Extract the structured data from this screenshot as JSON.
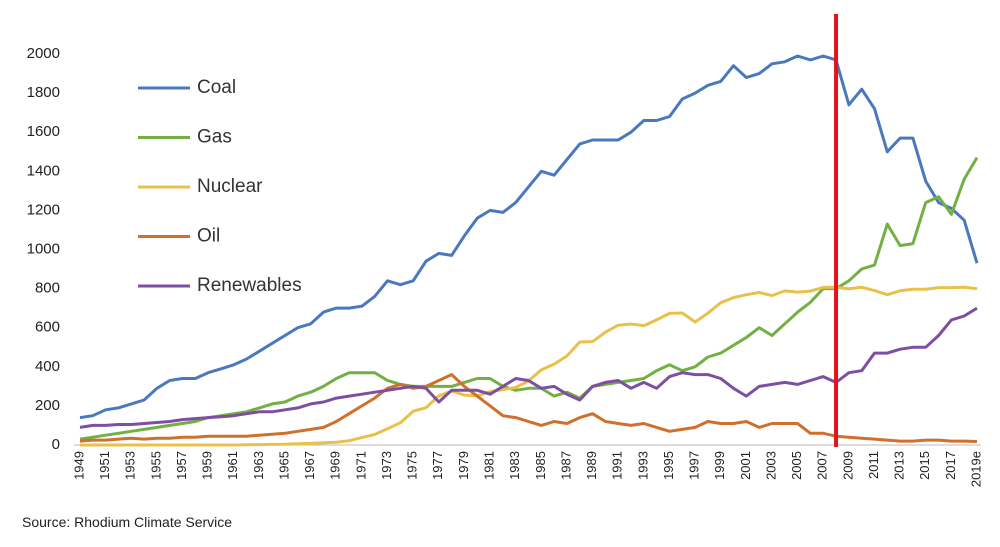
{
  "chart_data": {
    "type": "line",
    "categories": [
      "1949",
      null,
      "1951",
      null,
      "1953",
      null,
      "1955",
      null,
      "1957",
      null,
      "1959",
      null,
      "1961",
      null,
      "1963",
      null,
      "1965",
      null,
      "1967",
      null,
      "1969",
      null,
      "1971",
      null,
      "1973",
      null,
      "1975",
      null,
      "1977",
      null,
      "1979",
      null,
      "1981",
      null,
      "1983",
      null,
      "1985",
      null,
      "1987",
      null,
      "1989",
      null,
      "1991",
      null,
      "1993",
      null,
      "1995",
      null,
      "1997",
      null,
      "1999",
      null,
      "2001",
      null,
      "2003",
      null,
      "2005",
      null,
      "2007",
      null,
      "2009",
      null,
      "2011",
      null,
      "2013",
      null,
      "2015",
      null,
      "2017",
      null,
      "2019e"
    ],
    "series": [
      {
        "name": "Coal",
        "color": "#4a78be",
        "values": [
          140,
          150,
          180,
          190,
          210,
          230,
          290,
          330,
          340,
          340,
          370,
          390,
          410,
          440,
          480,
          520,
          560,
          600,
          620,
          680,
          700,
          700,
          710,
          760,
          840,
          820,
          840,
          940,
          980,
          970,
          1070,
          1160,
          1200,
          1190,
          1240,
          1320,
          1400,
          1380,
          1460,
          1540,
          1560,
          1560,
          1560,
          1600,
          1660,
          1660,
          1680,
          1770,
          1800,
          1840,
          1860,
          1940,
          1880,
          1900,
          1950,
          1960,
          1990,
          1970,
          1990,
          1970,
          1740,
          1820,
          1720,
          1500,
          1570,
          1570,
          1350,
          1240,
          1210,
          1150,
          930
        ]
      },
      {
        "name": "Gas",
        "color": "#72b043",
        "values": [
          30,
          40,
          50,
          60,
          70,
          80,
          90,
          100,
          110,
          120,
          140,
          150,
          160,
          170,
          190,
          210,
          220,
          250,
          270,
          300,
          340,
          370,
          370,
          370,
          330,
          310,
          300,
          300,
          300,
          300,
          320,
          340,
          340,
          300,
          280,
          290,
          290,
          250,
          270,
          240,
          300,
          310,
          320,
          330,
          340,
          380,
          410,
          380,
          400,
          450,
          470,
          510,
          550,
          600,
          560,
          620,
          680,
          730,
          800,
          800,
          840,
          900,
          920,
          1130,
          1020,
          1030,
          1240,
          1270,
          1180,
          1360,
          1470
        ]
      },
      {
        "name": "Nuclear",
        "color": "#e8c04a",
        "values": [
          0,
          0,
          0,
          0,
          0,
          0,
          0,
          0,
          0,
          0,
          0,
          0,
          0,
          1,
          2,
          3,
          4,
          6,
          8,
          12,
          14,
          22,
          38,
          54,
          83,
          114,
          173,
          191,
          251,
          276,
          255,
          251,
          273,
          283,
          294,
          328,
          384,
          414,
          455,
          527,
          529,
          577,
          613,
          619,
          610,
          640,
          673,
          675,
          629,
          674,
          728,
          754,
          769,
          780,
          764,
          788,
          782,
          787,
          806,
          806,
          799,
          807,
          790,
          769,
          789,
          797,
          797,
          805,
          805,
          807,
          800
        ]
      },
      {
        "name": "Oil",
        "color": "#d0702a",
        "values": [
          20,
          25,
          25,
          30,
          35,
          30,
          35,
          35,
          40,
          40,
          45,
          45,
          45,
          45,
          50,
          55,
          60,
          70,
          80,
          90,
          120,
          160,
          200,
          240,
          290,
          310,
          290,
          300,
          330,
          360,
          300,
          250,
          200,
          150,
          140,
          120,
          100,
          120,
          110,
          140,
          160,
          120,
          110,
          100,
          110,
          90,
          70,
          80,
          90,
          120,
          110,
          110,
          120,
          90,
          110,
          110,
          110,
          60,
          60,
          45,
          40,
          35,
          30,
          25,
          20,
          20,
          25,
          25,
          20,
          20,
          18
        ]
      },
      {
        "name": "Renewables",
        "color": "#7e4ea3",
        "values": [
          90,
          100,
          100,
          105,
          105,
          110,
          115,
          120,
          130,
          135,
          140,
          145,
          150,
          160,
          170,
          170,
          180,
          190,
          210,
          220,
          240,
          250,
          260,
          270,
          280,
          290,
          300,
          290,
          220,
          280,
          280,
          280,
          260,
          300,
          340,
          330,
          290,
          300,
          260,
          230,
          300,
          320,
          330,
          290,
          320,
          290,
          350,
          370,
          360,
          360,
          340,
          290,
          250,
          300,
          310,
          320,
          310,
          330,
          350,
          320,
          370,
          380,
          470,
          470,
          490,
          500,
          500,
          560,
          640,
          660,
          700
        ]
      }
    ],
    "ylim": [
      0,
      2000
    ],
    "yticks": [
      0,
      200,
      400,
      600,
      800,
      1000,
      1200,
      1400,
      1600,
      1800,
      2000
    ],
    "grid": false,
    "legend": "upper left",
    "source": "Source: Rhodium Climate Service"
  }
}
